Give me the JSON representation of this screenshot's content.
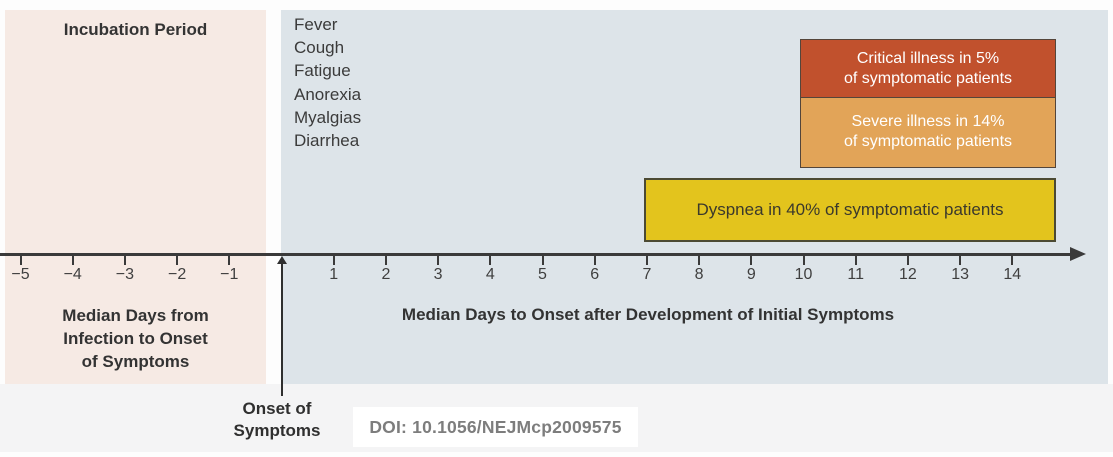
{
  "labels": {
    "incubation_title": "Incubation Period",
    "incubation_axis_label_lines": [
      "Median Days from",
      "Infection to Onset",
      "of Symptoms"
    ],
    "symptom_axis_label": "Median Days to Onset after Development of Initial Symptoms",
    "onset_label_lines": [
      "Onset of",
      "Symptoms"
    ],
    "doi": "DOI: 10.1056/NEJMcp2009575"
  },
  "chart_data": {
    "type": "bar",
    "subtype": "horizontal-timeline",
    "x_unit": "days",
    "x_ticks_negative": [
      -5,
      -4,
      -3,
      -2,
      -1
    ],
    "x_ticks_positive": [
      1,
      2,
      3,
      4,
      5,
      6,
      7,
      8,
      9,
      10,
      11,
      12,
      13,
      14
    ],
    "x_zero_marker": "Onset of Symptoms",
    "xlabel_left": "Median Days from Infection to Onset of Symptoms",
    "xlabel_right": "Median Days to Onset after Development of Initial Symptoms",
    "initial_symptoms": [
      "Fever",
      "Cough",
      "Fatigue",
      "Anorexia",
      "Myalgias",
      "Diarrhea"
    ],
    "series": [
      {
        "name": "Critical illness",
        "label_lines": [
          "Critical illness in 5%",
          "of symptomatic patients"
        ],
        "percent_of_symptomatic": 5,
        "start_day": 10,
        "end_day": 14.8,
        "color": "#c1512d",
        "text_color": "#ffffff"
      },
      {
        "name": "Severe illness",
        "label_lines": [
          "Severe illness in 14%",
          "of symptomatic patients"
        ],
        "percent_of_symptomatic": 14,
        "start_day": 10,
        "end_day": 14.8,
        "color": "#e2a458",
        "text_color": "#ffffff"
      },
      {
        "name": "Dyspnea",
        "label_lines": [
          "Dyspnea in 40% of symptomatic patients"
        ],
        "percent_of_symptomatic": 40,
        "start_day": 7,
        "end_day": 14.8,
        "color": "#e3c41d",
        "text_color": "#3b392c"
      }
    ],
    "colors": {
      "incubation_panel": "#f6eae4",
      "symptom_panel": "#dde4e9",
      "axis": "#3a3a3a",
      "footer_strip": "#f4f4f5"
    },
    "doi": "DOI: 10.1056/NEJMcp2009575"
  }
}
